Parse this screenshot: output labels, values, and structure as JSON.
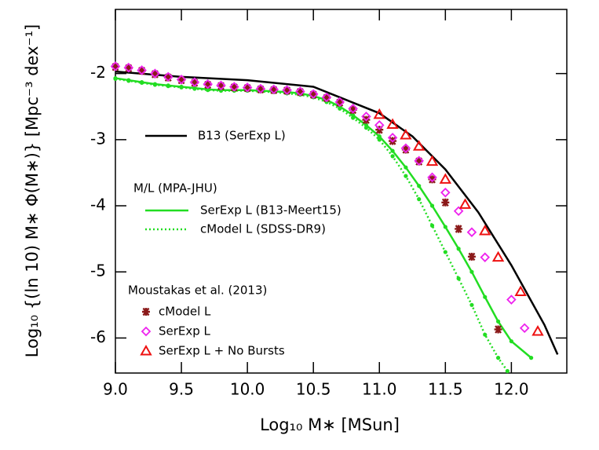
{
  "chart_data": {
    "type": "line",
    "xlabel": "Log₁₀ M∗ [MSun]",
    "ylabel": "Log₁₀ {(ln 10) M∗ Φ(M∗)} [Mpc⁻³ dex⁻¹]",
    "xlim": [
      9.0,
      12.42
    ],
    "ylim": [
      -6.53,
      -1.03
    ],
    "xticks": [
      {
        "value": 9,
        "label": "9.0"
      },
      9.5,
      {
        "value": 10,
        "label": "10.0"
      },
      10.5,
      {
        "value": 11,
        "label": "11.0"
      },
      11.5,
      {
        "value": 12,
        "label": "12.0"
      }
    ],
    "yticks": [
      -6,
      -5,
      -4,
      -3,
      -2
    ],
    "legend_titles": [
      "M/L (MPA-JHU)",
      "Moustakas et al. (2013)"
    ],
    "series": [
      {
        "name": "B13 (SerExp L)",
        "color": "#000000",
        "style": "solid",
        "marker": "none",
        "x": [
          9.0,
          9.5,
          10.0,
          10.5,
          10.75,
          11.0,
          11.25,
          11.5,
          11.75,
          12.0,
          12.25,
          12.35
        ],
        "values": [
          -1.97,
          -2.05,
          -2.1,
          -2.2,
          -2.4,
          -2.6,
          -2.95,
          -3.45,
          -4.1,
          -4.9,
          -5.8,
          -6.25
        ]
      },
      {
        "name": "SerExp L (B13-Meert15)",
        "color": "#22dd22",
        "style": "solid",
        "marker": "dot",
        "x": [
          9.0,
          9.1,
          9.2,
          9.3,
          9.4,
          9.5,
          9.6,
          9.7,
          9.8,
          9.9,
          10.0,
          10.1,
          10.2,
          10.3,
          10.4,
          10.5,
          10.6,
          10.7,
          10.8,
          10.9,
          11.0,
          11.1,
          11.2,
          11.3,
          11.4,
          11.5,
          11.6,
          11.7,
          11.8,
          11.9,
          12.0,
          12.15
        ],
        "values": [
          -2.07,
          -2.1,
          -2.13,
          -2.16,
          -2.18,
          -2.2,
          -2.22,
          -2.24,
          -2.25,
          -2.25,
          -2.25,
          -2.26,
          -2.27,
          -2.28,
          -2.3,
          -2.34,
          -2.4,
          -2.5,
          -2.63,
          -2.78,
          -2.95,
          -3.17,
          -3.42,
          -3.7,
          -4.0,
          -4.32,
          -4.65,
          -5.0,
          -5.38,
          -5.75,
          -6.05,
          -6.3
        ]
      },
      {
        "name": "cModel L (SDSS-DR9)",
        "color": "#22dd22",
        "style": "dotted",
        "marker": "dot",
        "x": [
          9.0,
          9.1,
          9.2,
          9.3,
          9.4,
          9.5,
          9.6,
          9.7,
          9.8,
          9.9,
          10.0,
          10.1,
          10.2,
          10.3,
          10.4,
          10.5,
          10.6,
          10.7,
          10.8,
          10.9,
          11.0,
          11.1,
          11.2,
          11.3,
          11.4,
          11.5,
          11.6,
          11.7,
          11.8,
          11.9,
          11.97
        ],
        "values": [
          -2.08,
          -2.11,
          -2.14,
          -2.17,
          -2.19,
          -2.21,
          -2.23,
          -2.25,
          -2.26,
          -2.26,
          -2.26,
          -2.27,
          -2.28,
          -2.3,
          -2.32,
          -2.36,
          -2.43,
          -2.53,
          -2.67,
          -2.82,
          -3.0,
          -3.25,
          -3.55,
          -3.9,
          -4.3,
          -4.7,
          -5.1,
          -5.5,
          -5.95,
          -6.3,
          -6.5
        ]
      },
      {
        "name": "cModel L",
        "color": "#8b1a1a",
        "style": "none",
        "marker": "asterisk",
        "x": [
          9.0,
          9.1,
          9.2,
          9.3,
          9.4,
          9.5,
          9.6,
          9.7,
          9.8,
          9.9,
          10.0,
          10.1,
          10.2,
          10.3,
          10.4,
          10.5,
          10.6,
          10.7,
          10.8,
          10.9,
          11.0,
          11.1,
          11.2,
          11.3,
          11.4,
          11.5,
          11.6,
          11.7,
          11.9
        ],
        "values": [
          -1.9,
          -1.92,
          -1.96,
          -2.01,
          -2.06,
          -2.1,
          -2.14,
          -2.17,
          -2.19,
          -2.21,
          -2.22,
          -2.24,
          -2.25,
          -2.26,
          -2.28,
          -2.32,
          -2.37,
          -2.44,
          -2.55,
          -2.7,
          -2.85,
          -3.02,
          -3.15,
          -3.33,
          -3.6,
          -3.95,
          -4.35,
          -4.77,
          -5.87
        ]
      },
      {
        "name": "SerExp L",
        "color": "#ee22ee",
        "style": "none",
        "marker": "diamond",
        "x": [
          9.0,
          9.1,
          9.2,
          9.3,
          9.4,
          9.5,
          9.6,
          9.7,
          9.8,
          9.9,
          10.0,
          10.1,
          10.2,
          10.3,
          10.4,
          10.5,
          10.6,
          10.7,
          10.8,
          10.9,
          11.0,
          11.1,
          11.2,
          11.3,
          11.4,
          11.5,
          11.6,
          11.7,
          11.8,
          12.0,
          12.1
        ],
        "values": [
          -1.89,
          -1.91,
          -1.95,
          -2.0,
          -2.05,
          -2.09,
          -2.13,
          -2.16,
          -2.18,
          -2.2,
          -2.21,
          -2.23,
          -2.24,
          -2.25,
          -2.27,
          -2.31,
          -2.36,
          -2.43,
          -2.53,
          -2.65,
          -2.78,
          -2.97,
          -3.13,
          -3.32,
          -3.57,
          -3.8,
          -4.08,
          -4.4,
          -4.78,
          -5.42,
          -5.85
        ]
      },
      {
        "name": "SerExp L + No Bursts",
        "color": "#ee1111",
        "style": "none",
        "marker": "triangle",
        "x": [
          11.0,
          11.1,
          11.2,
          11.3,
          11.4,
          11.5,
          11.65,
          11.8,
          11.9,
          12.07,
          12.2
        ],
        "values": [
          -2.62,
          -2.77,
          -2.93,
          -3.1,
          -3.33,
          -3.6,
          -3.98,
          -4.38,
          -4.78,
          -5.3,
          -5.9
        ]
      }
    ]
  }
}
